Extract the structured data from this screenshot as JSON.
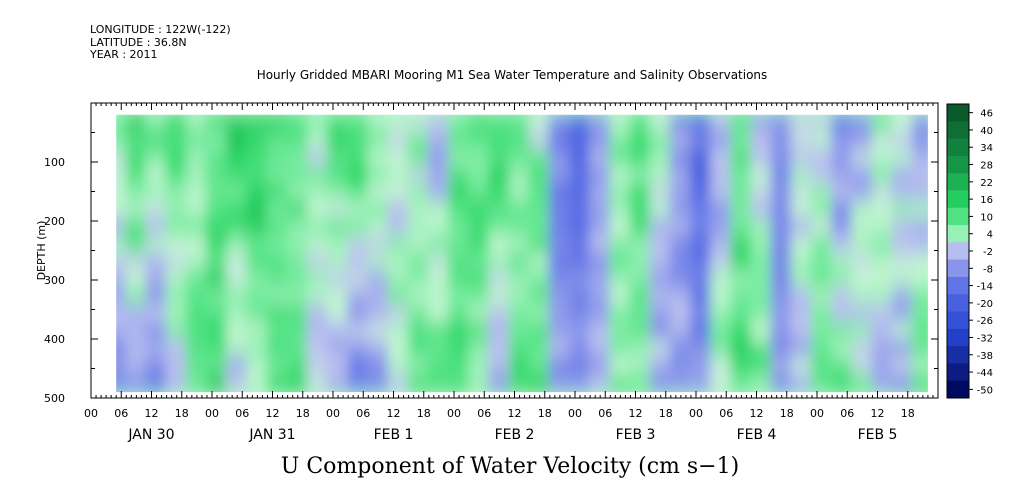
{
  "header": {
    "longitude": "LONGITUDE : 122W(-122)",
    "latitude": "LATITUDE : 36.8N",
    "year": "YEAR : 2011",
    "title": "Hourly Gridded MBARI Mooring M1 Sea Water Temperature and Salinity Observations"
  },
  "footer": {
    "variable_title": "U Component of Water Velocity (cm s−1)"
  },
  "chart_data": {
    "type": "heatmap",
    "title": "Hourly Gridded MBARI Mooring M1 Sea Water Temperature and Salinity Observations",
    "variable": "U Component of Water Velocity",
    "units": "cm s-1",
    "xlabel": "",
    "ylabel": "DEPTH (m)",
    "y_inverted": true,
    "ylim": [
      0,
      500
    ],
    "y_ticks": [
      100,
      200,
      300,
      400,
      500
    ],
    "x_range_hours": [
      0,
      168
    ],
    "data_start_hour": 5,
    "data_end_hour": 166,
    "data_depth_range": [
      20,
      490
    ],
    "x_hour_tick_labels": [
      "00",
      "06",
      "12",
      "18",
      "00",
      "06",
      "12",
      "18",
      "00",
      "06",
      "12",
      "18",
      "00",
      "06",
      "12",
      "18",
      "00",
      "06",
      "12",
      "18",
      "00",
      "06",
      "12",
      "18",
      "00",
      "06",
      "12",
      "18"
    ],
    "x_day_labels": [
      "JAN 30",
      "JAN 31",
      "FEB  1",
      "FEB  2",
      "FEB  3",
      "FEB  4",
      "FEB  5"
    ],
    "colorbar_levels": [
      "46",
      "40",
      "34",
      "28",
      "22",
      "16",
      "10",
      "4",
      "-2",
      "-8",
      "-14",
      "-20",
      "-26",
      "-32",
      "-38",
      "-44",
      "-50"
    ],
    "colorbar_range": [
      -50,
      52
    ],
    "colors": {
      "strong_positive": "#0a4a22",
      "moderate_positive": "#22d46a",
      "weak_positive": "#a8f0c0",
      "weak_negative": "#b0b6ec",
      "moderate_negative": "#4a66e0",
      "strong_negative": "#000a60"
    },
    "column_profiles": {
      "hours": [
        5,
        9,
        13,
        17,
        21,
        25,
        29,
        33,
        37,
        41,
        45,
        49,
        53,
        57,
        61,
        65,
        69,
        73,
        77,
        81,
        85,
        89,
        93,
        97,
        101,
        105,
        109,
        113,
        117,
        121,
        125,
        129,
        133,
        137,
        141,
        145,
        149,
        153,
        157,
        161,
        165
      ],
      "shallow_value": [
        6,
        14,
        8,
        12,
        4,
        10,
        16,
        18,
        12,
        8,
        4,
        10,
        14,
        6,
        2,
        4,
        -4,
        8,
        10,
        14,
        8,
        4,
        -10,
        -14,
        -6,
        6,
        10,
        4,
        -8,
        -16,
        -6,
        8,
        -4,
        -8,
        4,
        2,
        -12,
        -4,
        6,
        2,
        -6
      ],
      "deep_value": [
        -8,
        -6,
        -10,
        -2,
        6,
        12,
        -4,
        4,
        8,
        10,
        -4,
        -6,
        -10,
        -6,
        4,
        6,
        8,
        10,
        6,
        -4,
        8,
        10,
        -6,
        -10,
        -4,
        6,
        4,
        -6,
        -4,
        -8,
        4,
        10,
        8,
        -6,
        -4,
        6,
        8,
        4,
        -2,
        -4,
        8
      ]
    }
  }
}
